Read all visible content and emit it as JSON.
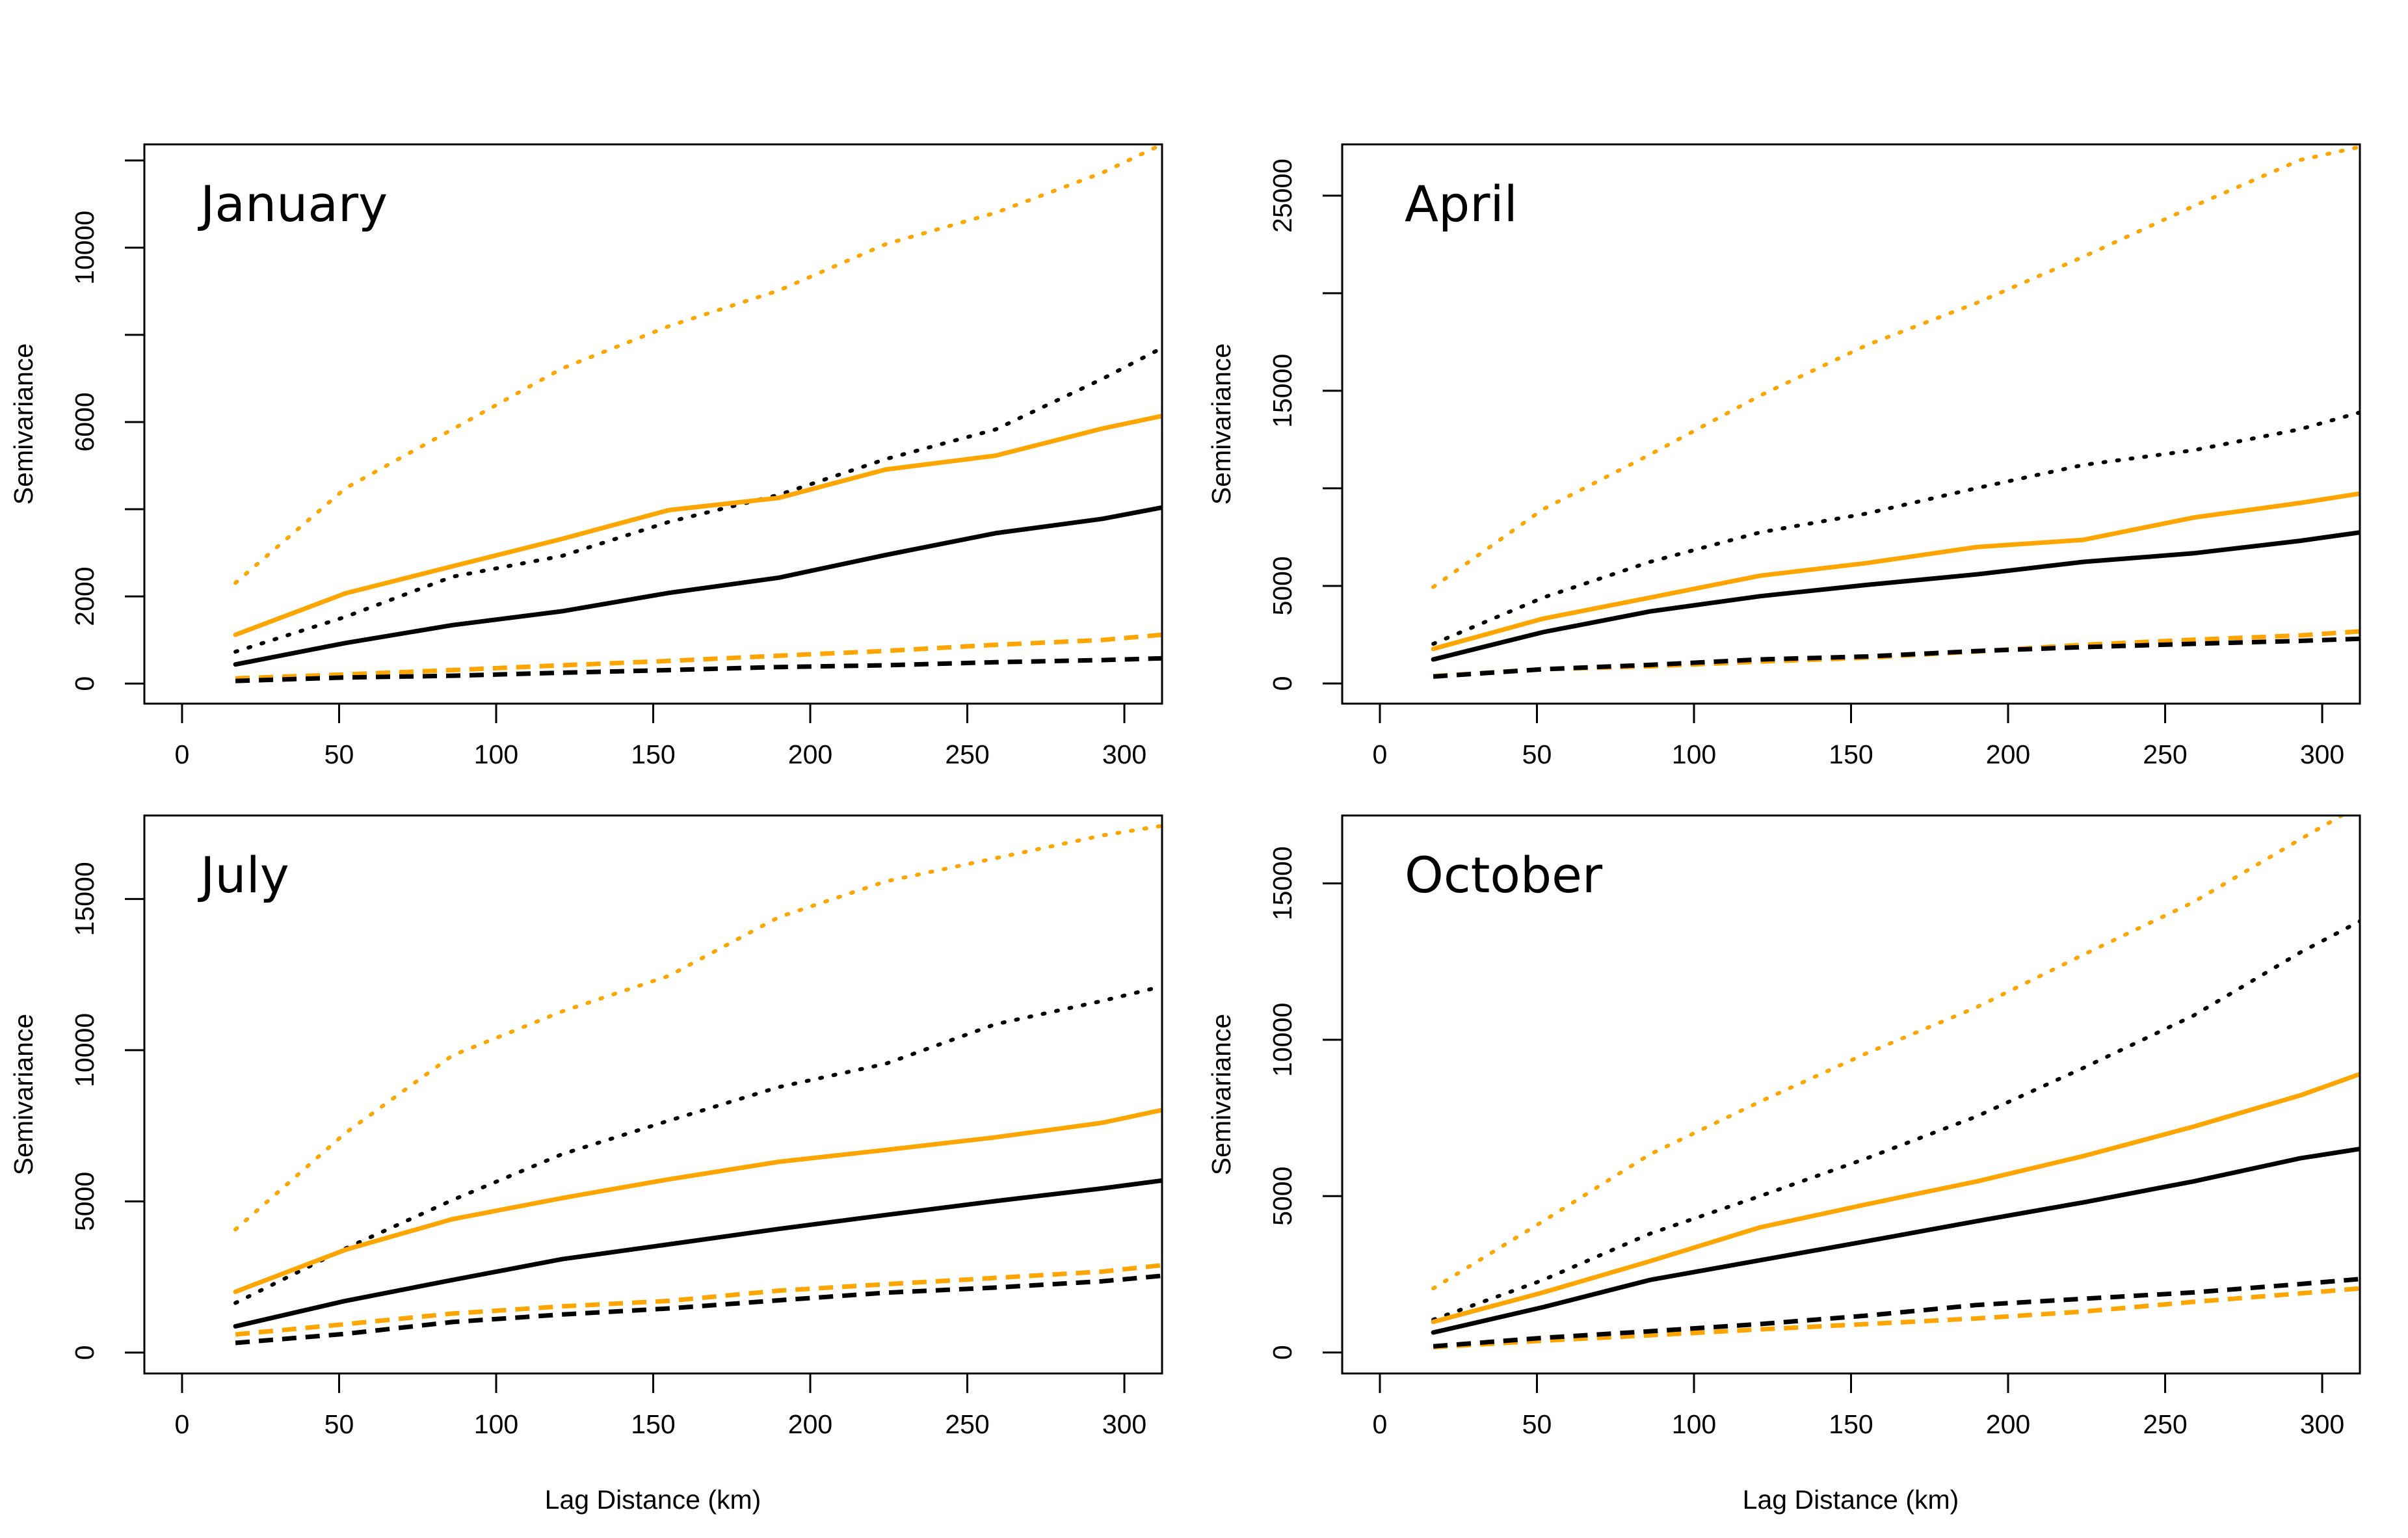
{
  "chart_data": [
    {
      "type": "line",
      "title": "January",
      "xlabel": "",
      "ylabel": "Semivariance",
      "xlim": [
        -12,
        312
      ],
      "ylim": [
        -460,
        12370
      ],
      "xticks": [
        0,
        50,
        100,
        150,
        200,
        250,
        300
      ],
      "yticks": [
        0,
        2000,
        4000,
        6000,
        8000,
        10000,
        12000
      ],
      "ytick_labels": [
        "0",
        "2000",
        "",
        "6000",
        "",
        "10000",
        ""
      ],
      "grid": false,
      "x": [
        17,
        52,
        86,
        121,
        155,
        190,
        224,
        259,
        293,
        312
      ],
      "series": [
        {
          "color": "#FFA500",
          "style": "dotted",
          "values": [
            2310,
            4480,
            5830,
            7230,
            8200,
            9020,
            10080,
            10800,
            11720,
            12370
          ]
        },
        {
          "color": "#000000",
          "style": "dotted",
          "values": [
            730,
            1530,
            2450,
            2930,
            3710,
            4330,
            5150,
            5830,
            6990,
            7700
          ]
        },
        {
          "color": "#FFA500",
          "style": "solid",
          "values": [
            1120,
            2070,
            2690,
            3320,
            3980,
            4260,
            4910,
            5230,
            5850,
            6140
          ]
        },
        {
          "color": "#000000",
          "style": "solid",
          "values": [
            440,
            930,
            1340,
            1660,
            2080,
            2430,
            2950,
            3450,
            3780,
            4040
          ]
        },
        {
          "color": "#FFA500",
          "style": "dashed",
          "values": [
            120,
            210,
            310,
            420,
            520,
            640,
            750,
            890,
            1000,
            1120
          ]
        },
        {
          "color": "#000000",
          "style": "dashed",
          "values": [
            60,
            140,
            180,
            250,
            310,
            380,
            420,
            490,
            540,
            580
          ]
        }
      ]
    },
    {
      "type": "line",
      "title": "April",
      "xlabel": "",
      "ylabel": "Semivariance",
      "xlim": [
        -12,
        312
      ],
      "ylim": [
        -1035,
        27630
      ],
      "xticks": [
        0,
        50,
        100,
        150,
        200,
        250,
        300
      ],
      "yticks": [
        0,
        5000,
        10000,
        15000,
        20000,
        25000
      ],
      "ytick_labels": [
        "0",
        "5000",
        "",
        "15000",
        "",
        "25000"
      ],
      "grid": false,
      "x": [
        17,
        52,
        86,
        121,
        155,
        190,
        224,
        259,
        293,
        312
      ],
      "series": [
        {
          "color": "#FFA500",
          "style": "dotted",
          "values": [
            4940,
            8930,
            11730,
            14750,
            17340,
            19500,
            21870,
            24460,
            26830,
            27500
          ]
        },
        {
          "color": "#000000",
          "style": "dotted",
          "values": [
            2030,
            4400,
            6230,
            7740,
            8710,
            10010,
            11200,
            11950,
            13030,
            13890
          ]
        },
        {
          "color": "#FFA500",
          "style": "solid",
          "values": [
            1770,
            3320,
            4400,
            5520,
            6170,
            6990,
            7360,
            8500,
            9250,
            9730
          ]
        },
        {
          "color": "#000000",
          "style": "solid",
          "values": [
            1230,
            2630,
            3690,
            4470,
            5050,
            5590,
            6230,
            6670,
            7310,
            7740
          ]
        },
        {
          "color": "#FFA500",
          "style": "dashed",
          "values": [
            370,
            730,
            880,
            1120,
            1320,
            1640,
            1980,
            2240,
            2460,
            2670
          ]
        },
        {
          "color": "#000000",
          "style": "dashed",
          "values": [
            350,
            730,
            950,
            1230,
            1380,
            1660,
            1860,
            2030,
            2180,
            2290
          ]
        }
      ]
    },
    {
      "type": "line",
      "title": "July",
      "xlabel": "Lag Distance (km)",
      "ylabel": "Semivariance",
      "xlim": [
        -12,
        312
      ],
      "ylim": [
        -690,
        17760
      ],
      "xticks": [
        0,
        50,
        100,
        150,
        200,
        250,
        300
      ],
      "yticks": [
        0,
        5000,
        10000,
        15000
      ],
      "ytick_labels": [
        "0",
        "5000",
        "10000",
        "15000"
      ],
      "grid": false,
      "x": [
        17,
        52,
        86,
        121,
        155,
        190,
        224,
        259,
        293,
        312
      ],
      "series": [
        {
          "color": "#FFA500",
          "style": "dotted",
          "values": [
            4070,
            7260,
            9820,
            11280,
            12460,
            14400,
            15580,
            16350,
            17100,
            17420
          ]
        },
        {
          "color": "#000000",
          "style": "dotted",
          "values": [
            1640,
            3440,
            5040,
            6560,
            7670,
            8780,
            9550,
            10860,
            11630,
            12110
          ]
        },
        {
          "color": "#FFA500",
          "style": "solid",
          "values": [
            2010,
            3400,
            4410,
            5110,
            5730,
            6310,
            6700,
            7120,
            7600,
            8020
          ]
        },
        {
          "color": "#000000",
          "style": "solid",
          "values": [
            870,
            1710,
            2400,
            3090,
            3580,
            4090,
            4550,
            5010,
            5430,
            5690
          ]
        },
        {
          "color": "#FFA500",
          "style": "dashed",
          "values": [
            600,
            940,
            1290,
            1530,
            1710,
            2050,
            2260,
            2470,
            2680,
            2890
          ]
        },
        {
          "color": "#000000",
          "style": "dashed",
          "values": [
            320,
            620,
            1010,
            1260,
            1460,
            1730,
            1980,
            2150,
            2360,
            2540
          ]
        }
      ]
    },
    {
      "type": "line",
      "title": "October",
      "xlabel": "Lag Distance (km)",
      "ylabel": "Semivariance",
      "xlim": [
        -12,
        312
      ],
      "ylim": [
        -670,
        17170
      ],
      "xticks": [
        0,
        50,
        100,
        150,
        200,
        250,
        300
      ],
      "yticks": [
        0,
        5000,
        10000,
        15000
      ],
      "ytick_labels": [
        "0",
        "5000",
        "10000",
        "15000"
      ],
      "grid": false,
      "x": [
        17,
        52,
        86,
        121,
        155,
        190,
        224,
        259,
        293,
        312
      ],
      "series": [
        {
          "color": "#FFA500",
          "style": "dotted",
          "values": [
            2050,
            4200,
            6340,
            8020,
            9570,
            11040,
            12720,
            14400,
            16410,
            17500
          ]
        },
        {
          "color": "#000000",
          "style": "dotted",
          "values": [
            1050,
            2320,
            3800,
            5000,
            6210,
            7550,
            9100,
            10770,
            12790,
            13790
          ]
        },
        {
          "color": "#FFA500",
          "style": "solid",
          "values": [
            980,
            1920,
            2920,
            4000,
            4740,
            5470,
            6280,
            7220,
            8220,
            8900
          ]
        },
        {
          "color": "#000000",
          "style": "solid",
          "values": [
            640,
            1450,
            2320,
            2950,
            3560,
            4200,
            4800,
            5470,
            6210,
            6510
          ]
        },
        {
          "color": "#FFA500",
          "style": "dashed",
          "values": [
            170,
            380,
            550,
            740,
            910,
            1090,
            1310,
            1620,
            1890,
            2050
          ]
        },
        {
          "color": "#000000",
          "style": "dashed",
          "values": [
            200,
            470,
            680,
            910,
            1180,
            1520,
            1720,
            1920,
            2190,
            2350
          ]
        }
      ]
    }
  ]
}
